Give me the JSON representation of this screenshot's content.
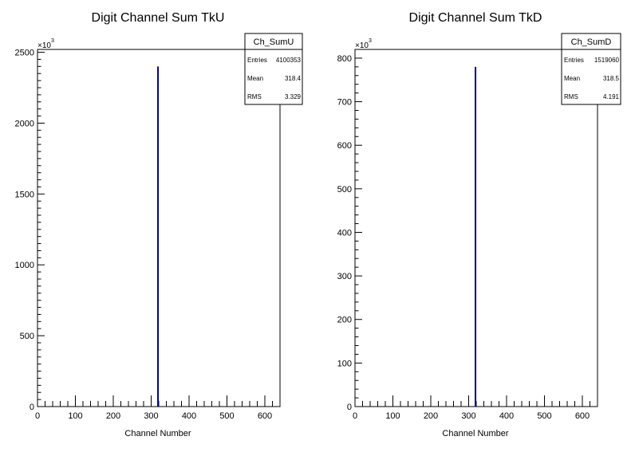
{
  "chart_data": [
    {
      "type": "bar",
      "name": "Ch_SumU",
      "title": "Digit Channel Sum TkU",
      "xlabel": "Channel Number",
      "ylabel": "",
      "y_multiplier": "×10",
      "y_multiplier_exp": "3",
      "xlim": [
        0,
        640
      ],
      "ylim": [
        0,
        2520
      ],
      "xticks": [
        0,
        100,
        200,
        300,
        400,
        500,
        600
      ],
      "yticks": [
        0,
        500,
        1000,
        1500,
        2000,
        2500
      ],
      "x": [
        318
      ],
      "values": [
        2400
      ],
      "color": "#00007f",
      "stats": {
        "title": "Ch_SumU",
        "rows": [
          {
            "label": "Entries",
            "value": "4100353"
          },
          {
            "label": "Mean",
            "value": "318.4"
          },
          {
            "label": "RMS",
            "value": "3.329"
          }
        ]
      }
    },
    {
      "type": "bar",
      "name": "Ch_SumD",
      "title": "Digit Channel Sum TkD",
      "xlabel": "Channel Number",
      "ylabel": "",
      "y_multiplier": "×10",
      "y_multiplier_exp": "3",
      "xlim": [
        0,
        640
      ],
      "ylim": [
        0,
        820
      ],
      "xticks": [
        0,
        100,
        200,
        300,
        400,
        500,
        600
      ],
      "yticks": [
        0,
        100,
        200,
        300,
        400,
        500,
        600,
        700,
        800
      ],
      "x": [
        318
      ],
      "values": [
        780
      ],
      "color": "#00007f",
      "stats": {
        "title": "Ch_SumD",
        "rows": [
          {
            "label": "Entries",
            "value": "1519060"
          },
          {
            "label": "Mean",
            "value": "318.5"
          },
          {
            "label": "RMS",
            "value": "4.191"
          }
        ]
      }
    }
  ]
}
